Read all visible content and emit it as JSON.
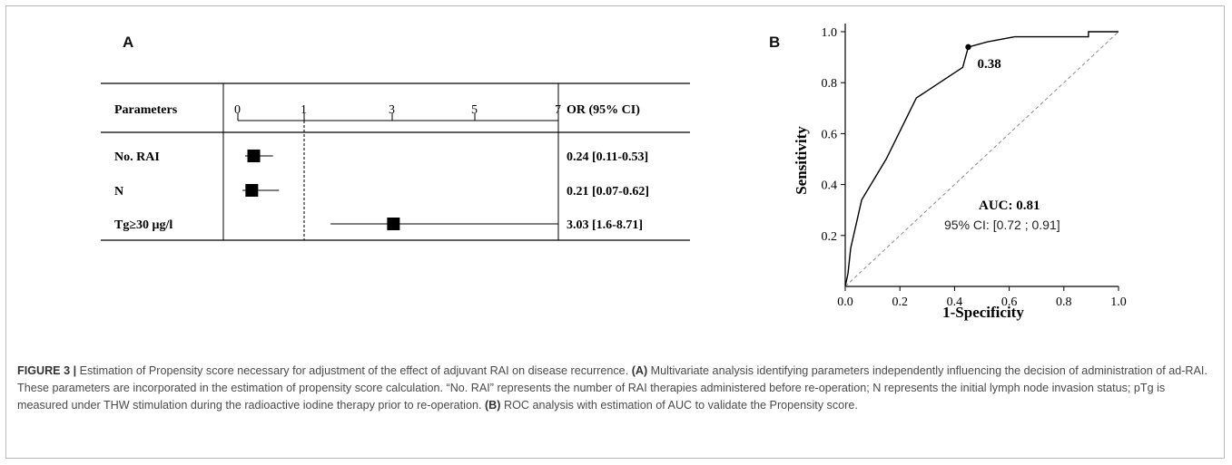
{
  "panel_a_label": "A",
  "panel_b_label": "B",
  "chart_data": [
    {
      "type": "forest",
      "columns": {
        "left": "Parameters",
        "right": "OR (95% CI)"
      },
      "x_ticks": [
        0,
        1,
        3,
        5,
        7
      ],
      "xlim": [
        0,
        7
      ],
      "reference_line": 1,
      "rows": [
        {
          "label": "No. RAI",
          "or": 0.24,
          "ci_low": 0.11,
          "ci_high": 0.53,
          "text": "0.24 [0.11-0.53]"
        },
        {
          "label": "N",
          "or": 0.21,
          "ci_low": 0.07,
          "ci_high": 0.62,
          "text": "0.21 [0.07-0.62]"
        },
        {
          "label": "Tg≥30 μg/l",
          "or": 3.03,
          "ci_low": 1.6,
          "ci_high": 8.71,
          "text": "3.03 [1.6-8.71]"
        }
      ]
    },
    {
      "type": "line",
      "xlabel": "1-Specificity",
      "ylabel": "Sensitivity",
      "xlim": [
        0,
        1
      ],
      "ylim": [
        0,
        1
      ],
      "x_ticks": [
        "0.0",
        "0.2",
        "0.4",
        "0.6",
        "0.8",
        "1.0"
      ],
      "y_ticks": [
        "0.2",
        "0.4",
        "0.6",
        "0.8",
        "1.0"
      ],
      "roc_curve": {
        "x": [
          0,
          0.01,
          0.02,
          0.06,
          0.15,
          0.26,
          0.43,
          0.45,
          0.52,
          0.62,
          0.89,
          0.89,
          0.96,
          1.0
        ],
        "y": [
          0,
          0.05,
          0.15,
          0.34,
          0.5,
          0.74,
          0.86,
          0.94,
          0.96,
          0.98,
          0.98,
          1.0,
          1.0,
          1.0
        ]
      },
      "diagonal": {
        "x": [
          0,
          1
        ],
        "y": [
          0,
          1
        ],
        "style": "dashed"
      },
      "cutoff_point": {
        "x": 0.45,
        "y": 0.94,
        "label": "0.38"
      },
      "annotations": {
        "auc": "AUC: 0.81",
        "ci": "95% CI: [0.72 ; 0.91]"
      }
    }
  ],
  "caption": {
    "fig_label": "FIGURE 3 |",
    "intro": " Estimation of Propensity score necessary for adjustment of the effect of adjuvant RAI on disease recurrence. ",
    "a_tag": "(A)",
    "a_text": " Multivariate analysis identifying parameters independently influencing the decision of administration of ad-RAI. These parameters are incorporated in the estimation of propensity score calculation. “No. RAI” represents the number of RAI therapies administered before re-operation; N represents the initial lymph node invasion status; pTg is measured under THW stimulation during the radioactive iodine therapy prior to re-operation. ",
    "b_tag": "(B)",
    "b_text": " ROC analysis with estimation of AUC to validate the Propensity score."
  }
}
